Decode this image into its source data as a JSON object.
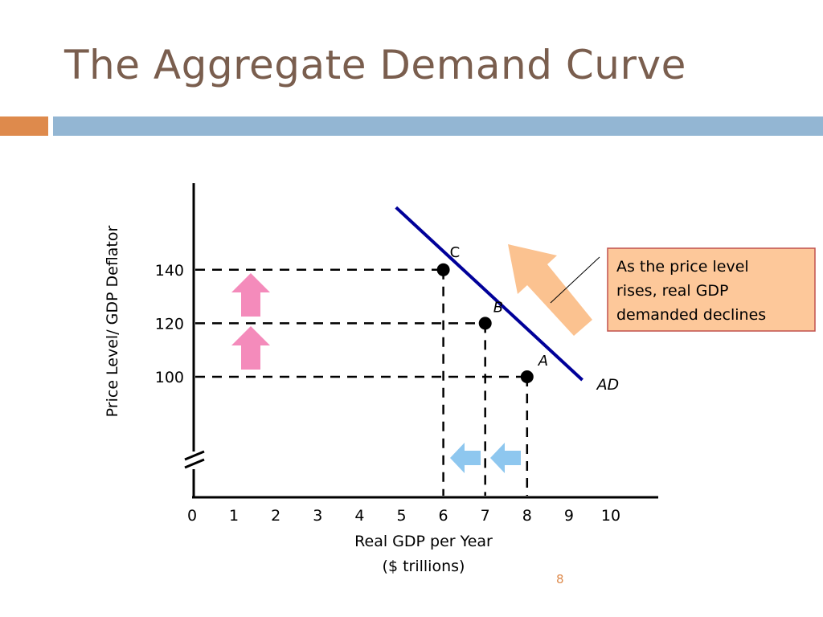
{
  "slide": {
    "title": "The Aggregate Demand Curve",
    "page_number": "8"
  },
  "colors": {
    "title": "#7a5e4e",
    "accent_orange": "#de8a4c",
    "accent_blue": "#93b6d3",
    "curve": "#000099",
    "pink_arrow": "#f48bbb",
    "blue_arrow": "#8ec7ef",
    "callout_bg": "#fdc89a",
    "callout_border": "#c0504d",
    "callout_arrow": "#fbc290"
  },
  "chart_data": {
    "type": "line",
    "xlabel": "Real GDP per Year",
    "xlabel_unit": "($ trillions)",
    "ylabel": "Price Level/ GDP Deflator",
    "xlim": [
      0,
      10
    ],
    "x_ticks": [
      "0",
      "1",
      "2",
      "3",
      "4",
      "5",
      "6",
      "7",
      "8",
      "9",
      "10"
    ],
    "y_ticks": [
      {
        "label": "100",
        "value": 100
      },
      {
        "label": "120",
        "value": 120
      },
      {
        "label": "140",
        "value": 140
      }
    ],
    "y_axis_break": true,
    "series": [
      {
        "name": "AD",
        "x": [
          4.87,
          9.32
        ],
        "y": [
          163.3,
          98.8
        ]
      }
    ],
    "points": [
      {
        "label": "C",
        "x": 6,
        "y": 140
      },
      {
        "label": "B",
        "x": 7,
        "y": 120
      },
      {
        "label": "A",
        "x": 8,
        "y": 100
      }
    ],
    "annotations": [
      {
        "id": "callout",
        "text_lines": [
          "As the price level",
          "rises, real GDP",
          "demanded declines"
        ]
      }
    ],
    "grid": false,
    "legend": "none"
  }
}
